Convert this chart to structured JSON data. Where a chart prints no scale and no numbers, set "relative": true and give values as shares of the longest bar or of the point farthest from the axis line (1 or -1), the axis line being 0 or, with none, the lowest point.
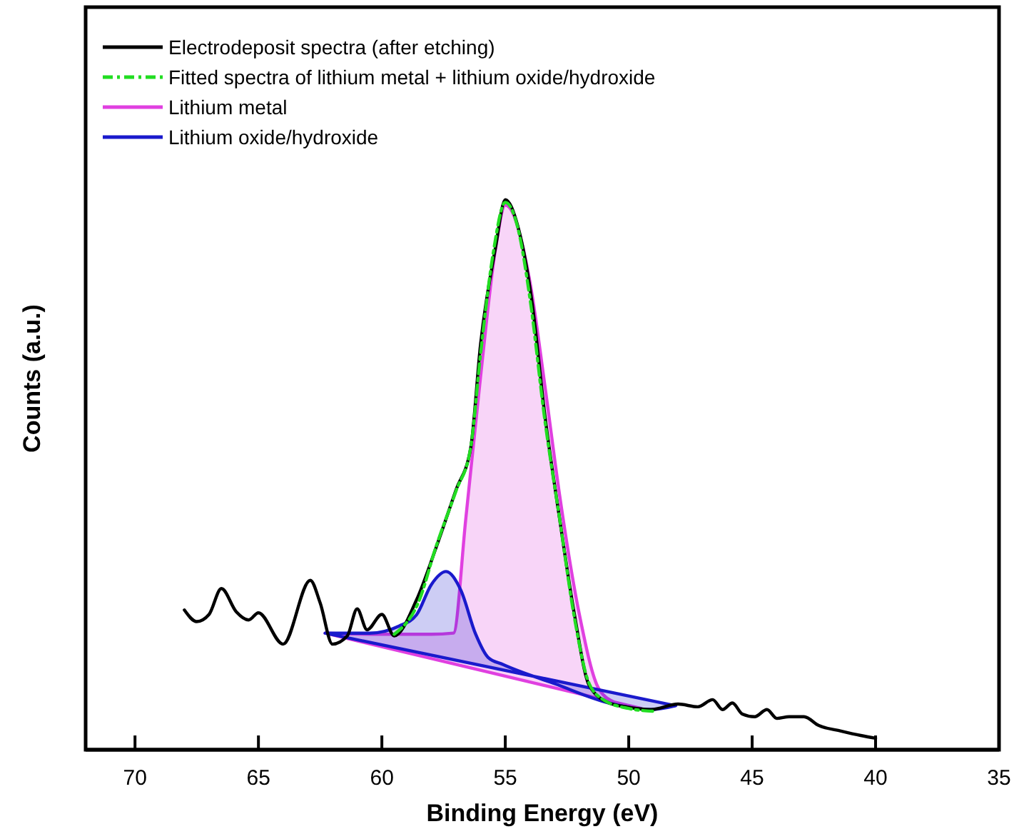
{
  "chart_data": {
    "type": "line",
    "relative": true,
    "xlabel": "Binding Energy (eV)",
    "ylabel": "Counts (a.u.)",
    "xlim": [
      72,
      35
    ],
    "xticks": [
      70,
      65,
      60,
      55,
      50,
      45,
      40,
      35
    ],
    "tick_labels": "x",
    "legend": "top left",
    "grid": false,
    "series": [
      {
        "name": "Lithium metal",
        "type": "area",
        "color": "#e040e0",
        "x": [
          62.3,
          60,
          59,
          58,
          57.1,
          56.6,
          56.0,
          55.4,
          55.0,
          54.0,
          53.4,
          52.8,
          52.0,
          51.2,
          50.5,
          49.5
        ],
        "values": [
          0.212,
          0.21,
          0.21,
          0.21,
          0.212,
          0.42,
          0.679,
          0.909,
          0.99,
          0.85,
          0.663,
          0.463,
          0.246,
          0.11,
          0.085,
          0.075
        ]
      },
      {
        "name": "Lithium oxide/hydroxide",
        "type": "area",
        "color": "#1a1acc",
        "x": [
          62.3,
          60.5,
          59.3,
          58.6,
          58.0,
          57.4,
          56.8,
          56.2,
          55.7,
          55.1,
          53.0,
          50.8,
          49.1,
          48.1
        ],
        "values": [
          0.212,
          0.212,
          0.225,
          0.245,
          0.3,
          0.324,
          0.29,
          0.21,
          0.168,
          0.155,
          0.12,
          0.085,
          0.073,
          0.08
        ]
      },
      {
        "name": "Electrodeposit spectra (after etching)",
        "color": "#000000",
        "x": [
          68.0,
          67.5,
          67.0,
          66.5,
          65.9,
          65.4,
          65.0,
          64.0,
          62.9,
          62.5,
          62.0,
          61.4,
          61.0,
          60.6,
          60.0,
          59.5,
          58.6,
          57.8,
          57.0,
          56.4,
          56.0,
          55.4,
          55.0,
          54.5,
          53.9,
          53.4,
          52.8,
          52.2,
          51.6,
          50.8,
          50.1,
          49.1,
          48.0,
          47.2,
          46.6,
          46.2,
          45.8,
          45.4,
          44.9,
          44.4,
          44.0,
          43.5,
          42.9,
          42.3,
          41.4,
          40.6,
          40.0
        ],
        "values": [
          0.254,
          0.233,
          0.246,
          0.293,
          0.251,
          0.236,
          0.249,
          0.192,
          0.308,
          0.267,
          0.192,
          0.207,
          0.256,
          0.218,
          0.246,
          0.207,
          0.272,
          0.368,
          0.472,
          0.549,
          0.738,
          0.912,
          1,
          0.953,
          0.808,
          0.609,
          0.42,
          0.246,
          0.117,
          0.085,
          0.078,
          0.073,
          0.083,
          0.078,
          0.091,
          0.073,
          0.085,
          0.065,
          0.06,
          0.073,
          0.057,
          0.06,
          0.06,
          0.044,
          0.034,
          0.026,
          0.021
        ]
      },
      {
        "name": "Fitted spectra of lithium metal + lithium oxide/hydroxide",
        "color": "#22dd22",
        "line_style": "dashed",
        "x": [
          59.5,
          58.5,
          57.8,
          57.0,
          56.4,
          56.0,
          55.5,
          55.0,
          54.5,
          54.0,
          53.4,
          52.8,
          52.2,
          51.6,
          51.0,
          50.0,
          49.0
        ],
        "values": [
          0.21,
          0.27,
          0.37,
          0.47,
          0.55,
          0.72,
          0.9,
          0.995,
          0.95,
          0.82,
          0.6,
          0.42,
          0.24,
          0.12,
          0.09,
          0.075,
          0.07
        ]
      }
    ]
  }
}
